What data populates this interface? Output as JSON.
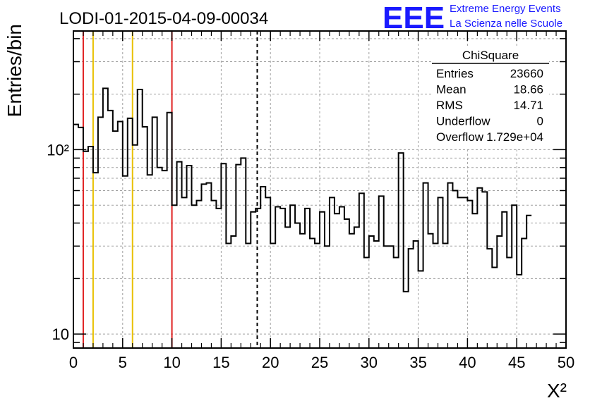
{
  "page": {
    "title": "LODI-01-2015-04-09-00034",
    "logo": {
      "text": "EEE",
      "line1": "Extreme Energy Events",
      "line2": "La Scienza nelle Scuole",
      "color": "#1a1aff"
    }
  },
  "stats_box": {
    "name": "ChiSquare",
    "rows": [
      {
        "label": "Entries",
        "value": "23660"
      },
      {
        "label": "Mean",
        "value": "18.66"
      },
      {
        "label": "RMS",
        "value": "14.71"
      },
      {
        "label": "Underflow",
        "value": "0"
      },
      {
        "label": "Overflow",
        "value": "1.729e+04"
      }
    ]
  },
  "chart_data": {
    "type": "histogram",
    "title": "LODI-01-2015-04-09-00034",
    "xlabel": "X²",
    "ylabel": "Entries/bin",
    "xlim": [
      0,
      50
    ],
    "ylim": [
      8.4,
      440
    ],
    "yscale": "log",
    "grid": true,
    "bin_width": 0.5,
    "x_ticks": [
      0,
      5,
      10,
      15,
      20,
      25,
      30,
      35,
      40,
      45,
      50
    ],
    "y_tick_labels": [
      {
        "value": 10,
        "label": "10"
      },
      {
        "value": 100,
        "label": "10²"
      }
    ],
    "values": [
      137,
      132,
      98,
      104,
      75,
      150,
      215,
      163,
      126,
      142,
      72,
      148,
      106,
      212,
      133,
      73,
      150,
      80,
      77,
      159,
      50,
      86,
      55,
      82,
      50,
      53,
      65,
      66,
      53,
      48,
      84,
      31,
      34,
      83,
      90,
      31,
      46,
      48,
      63,
      55,
      31,
      49,
      48,
      38,
      50,
      40,
      35,
      48,
      33,
      31,
      46,
      30,
      55,
      45,
      49,
      42,
      35,
      38,
      58,
      26,
      34,
      32,
      56,
      30,
      30,
      26,
      96,
      17,
      29,
      32,
      22,
      66,
      35,
      31,
      55,
      31,
      66,
      60,
      55,
      55,
      53,
      45,
      62,
      59,
      29,
      23,
      34,
      46,
      26,
      50,
      21,
      33,
      44
    ],
    "markers": [
      {
        "x": 1,
        "color": "#e02020",
        "style": "solid"
      },
      {
        "x": 2,
        "color": "#e8c000",
        "style": "solid"
      },
      {
        "x": 6,
        "color": "#e8c000",
        "style": "solid"
      },
      {
        "x": 10,
        "color": "#e02020",
        "style": "solid"
      },
      {
        "x": 18.66,
        "color": "#000000",
        "style": "dashed"
      }
    ]
  }
}
